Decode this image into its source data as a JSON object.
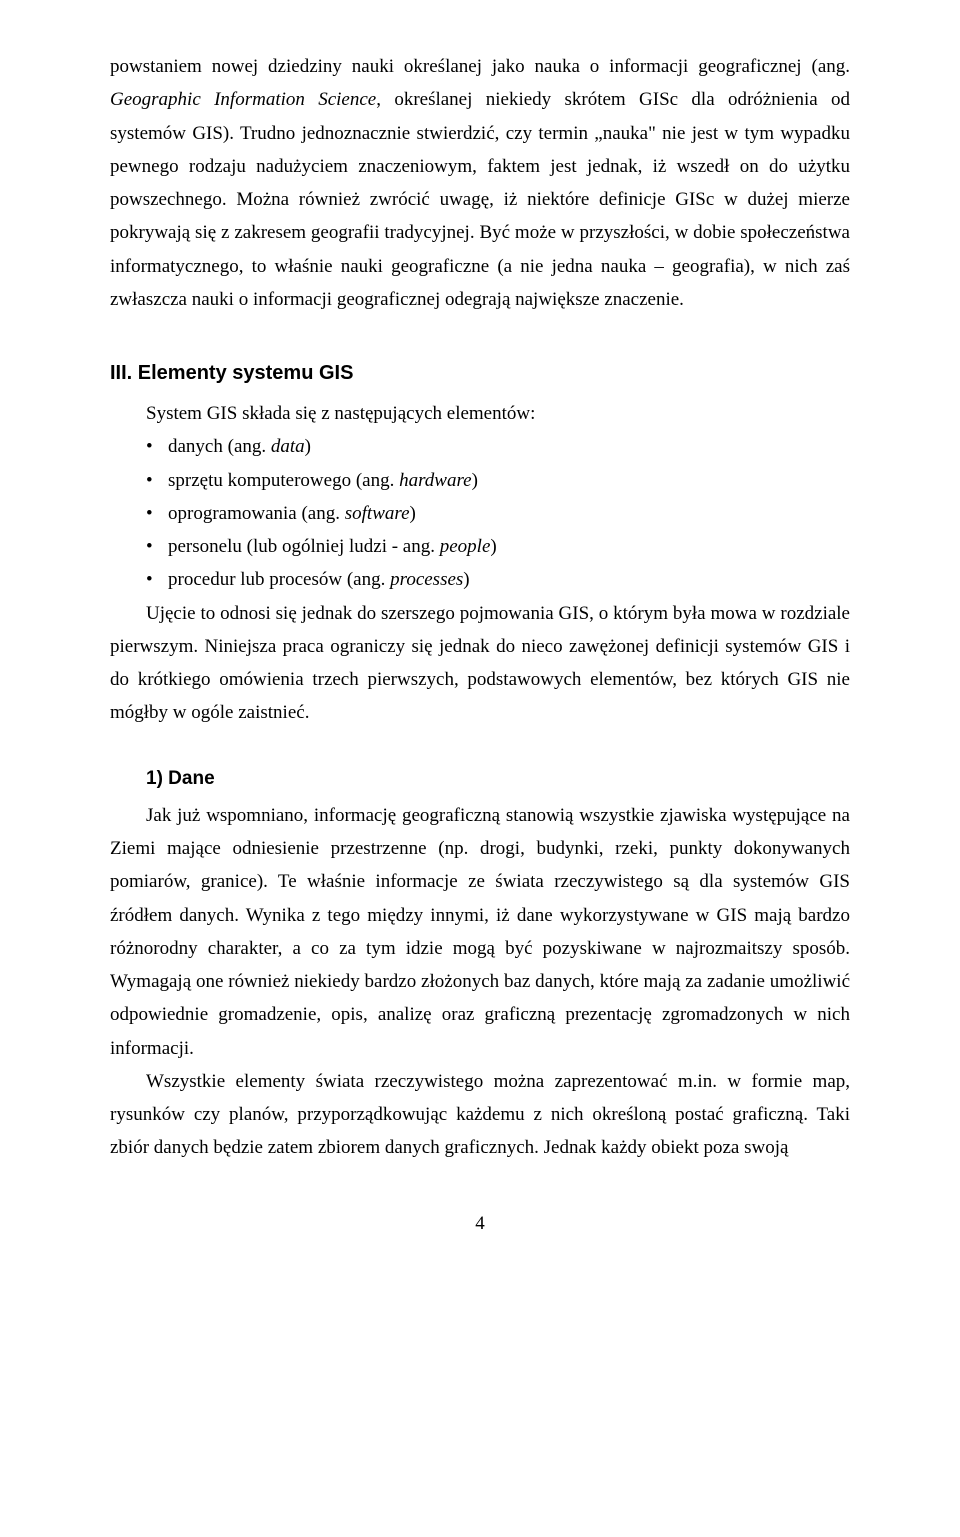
{
  "para1_a": "powstaniem nowej dziedziny nauki określanej jako nauka o informacji geograficznej (ang. ",
  "para1_b": "Geographic Information Science",
  "para1_c": ", określanej niekiedy skrótem GISc dla odróżnienia od systemów GIS). Trudno jednoznacznie stwierdzić, czy termin „nauka\" nie jest w tym wypadku pewnego rodzaju nadużyciem znaczeniowym, faktem jest jednak, iż wszedł on do użytku powszechnego. Można również zwrócić uwagę, iż niektóre definicje GISc w dużej mierze pokrywają się z zakresem geografii tradycyjnej. Być może w przyszłości, w dobie społeczeństwa informatycznego, to właśnie nauki geograficzne (a nie jedna nauka – geografia), w nich zaś zwłaszcza nauki o informacji geograficznej odegrają największe znaczenie.",
  "heading3": "III. Elementy systemu GIS",
  "para2": "System GIS składa się z następujących elementów:",
  "bullets": [
    {
      "a": "danych (ang. ",
      "b": "data",
      "c": ")"
    },
    {
      "a": "sprzętu komputerowego (ang. ",
      "b": "hardware",
      "c": ")"
    },
    {
      "a": "oprogramowania (ang. ",
      "b": "software",
      "c": ")"
    },
    {
      "a": "personelu (lub ogólniej ludzi - ang. ",
      "b": "people",
      "c": ")"
    },
    {
      "a": "procedur lub procesów  (ang. ",
      "b": "processes",
      "c": ")"
    }
  ],
  "para3": "Ujęcie to odnosi się jednak do szerszego pojmowania GIS, o którym była mowa w rozdziale pierwszym. Niniejsza praca ograniczy się jednak do nieco zawężonej definicji systemów GIS i do krótkiego omówienia trzech pierwszych, podstawowych elementów, bez których GIS nie mógłby w ogóle zaistnieć.",
  "subheading1": "1) Dane",
  "para4": "Jak już wspomniano, informację geograficzną stanowią wszystkie zjawiska występujące na Ziemi mające odniesienie przestrzenne (np. drogi, budynki, rzeki, punkty dokonywanych pomiarów, granice). Te właśnie informacje ze świata rzeczywistego są dla systemów GIS źródłem danych. Wynika z tego między innymi, iż dane wykorzystywane w GIS mają bardzo różnorodny charakter, a co za tym idzie mogą być pozyskiwane w najrozmaitszy sposób. Wymagają one również niekiedy bardzo złożonych baz danych, które mają za zadanie umożliwić odpowiednie gromadzenie, opis, analizę oraz graficzną prezentację zgromadzonych w nich informacji.",
  "para5": "Wszystkie elementy świata rzeczywistego można zaprezentować m.in. w formie map, rysunków czy planów, przyporządkowując każdemu z nich określoną postać graficzną. Taki zbiór danych będzie zatem zbiorem danych graficznych. Jednak każdy obiekt poza swoją",
  "pagenum": "4"
}
